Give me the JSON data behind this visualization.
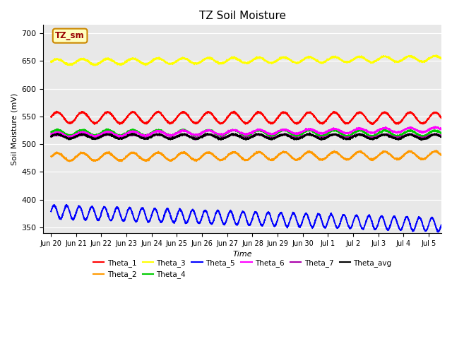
{
  "title": "TZ Soil Moisture",
  "xlabel": "Time",
  "ylabel": "Soil Moisture (mV)",
  "ylim": [
    340,
    715
  ],
  "background_color": "#e8e8e8",
  "fig_background": "#ffffff",
  "series": {
    "Theta_1": {
      "color": "#ff0000",
      "base": 548,
      "amp": 10,
      "period": 1.0,
      "trend": -0.05
    },
    "Theta_2": {
      "color": "#ff9900",
      "base": 477,
      "amp": 7,
      "period": 1.0,
      "trend": 0.2
    },
    "Theta_3": {
      "color": "#ffff00",
      "base": 648,
      "amp": 5,
      "period": 1.0,
      "trend": 0.4
    },
    "Theta_4": {
      "color": "#00cc00",
      "base": 521,
      "amp": 5,
      "period": 1.0,
      "trend": -0.1
    },
    "Theta_5": {
      "color": "#0000ff",
      "base": 378,
      "amp": 12,
      "period": 0.5,
      "trend": -1.5
    },
    "Theta_6": {
      "color": "#ff00ff",
      "base": 517,
      "amp": 4,
      "period": 1.0,
      "trend": 0.6
    },
    "Theta_7": {
      "color": "#aa00aa",
      "base": 514,
      "amp": 3,
      "period": 1.0,
      "trend": 0.05
    },
    "Theta_avg": {
      "color": "#000000",
      "base": 514,
      "amp": 4,
      "period": 1.0,
      "trend": -0.05
    }
  },
  "tick_labels": [
    "Jun 20",
    "Jun 21",
    "Jun 22",
    "Jun 23",
    "Jun 24",
    "Jun 25",
    "Jun 26",
    "Jun 27",
    "Jun 28",
    "Jun 29",
    "Jun 30",
    "Jul 1",
    "Jul 2",
    "Jul 3",
    "Jul 4",
    "Jul 5"
  ],
  "yticks": [
    350,
    400,
    450,
    500,
    550,
    600,
    650,
    700
  ],
  "legend_box_label": "TZ_sm",
  "legend_box_color": "#ffffc0",
  "legend_box_edge": "#cc8800",
  "legend_row1": [
    "Theta_1",
    "Theta_2",
    "Theta_3",
    "Theta_4",
    "Theta_5",
    "Theta_6"
  ],
  "legend_row2": [
    "Theta_7",
    "Theta_avg"
  ]
}
